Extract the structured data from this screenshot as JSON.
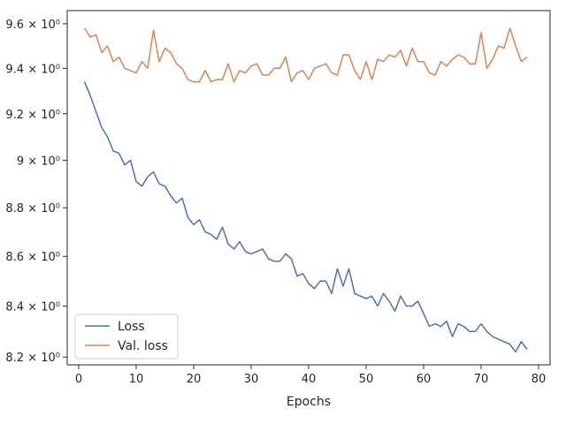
{
  "chart_data": {
    "type": "line",
    "title": "",
    "xlabel": "Epochs",
    "ylabel": "",
    "yscale": "log",
    "xlim": [
      -2,
      82
    ],
    "ylim": [
      8.17,
      9.66
    ],
    "grid": false,
    "legend": "lower-left",
    "x_ticks": [
      0,
      10,
      20,
      30,
      40,
      50,
      60,
      70,
      80
    ],
    "y_ticks": [
      {
        "value": 8.2,
        "label": "8.2 × 10⁰"
      },
      {
        "value": 8.4,
        "label": "8.4 × 10⁰"
      },
      {
        "value": 8.6,
        "label": "8.6 × 10⁰"
      },
      {
        "value": 8.8,
        "label": "8.8 × 10⁰"
      },
      {
        "value": 9.0,
        "label": "9 × 10⁰"
      },
      {
        "value": 9.2,
        "label": "9.2 × 10⁰"
      },
      {
        "value": 9.4,
        "label": "9.4 × 10⁰"
      },
      {
        "value": 9.6,
        "label": "9.6 × 10⁰"
      }
    ],
    "x": [
      1,
      2,
      3,
      4,
      5,
      6,
      7,
      8,
      9,
      10,
      11,
      12,
      13,
      14,
      15,
      16,
      17,
      18,
      19,
      20,
      21,
      22,
      23,
      24,
      25,
      26,
      27,
      28,
      29,
      30,
      31,
      32,
      33,
      34,
      35,
      36,
      37,
      38,
      39,
      40,
      41,
      42,
      43,
      44,
      45,
      46,
      47,
      48,
      49,
      50,
      51,
      52,
      53,
      54,
      55,
      56,
      57,
      58,
      59,
      60,
      61,
      62,
      63,
      64,
      65,
      66,
      67,
      68,
      69,
      70,
      71,
      72,
      73,
      74,
      75,
      76,
      77,
      78
    ],
    "series": [
      {
        "name": "Loss",
        "color": "#4c72b0",
        "values": [
          9.34,
          9.28,
          9.21,
          9.14,
          9.1,
          9.04,
          9.03,
          8.98,
          9.0,
          8.91,
          8.89,
          8.93,
          8.95,
          8.9,
          8.89,
          8.85,
          8.82,
          8.84,
          8.76,
          8.73,
          8.75,
          8.7,
          8.69,
          8.67,
          8.72,
          8.65,
          8.63,
          8.66,
          8.62,
          8.61,
          8.62,
          8.63,
          8.59,
          8.58,
          8.58,
          8.61,
          8.59,
          8.52,
          8.53,
          8.49,
          8.47,
          8.5,
          8.5,
          8.45,
          8.55,
          8.48,
          8.55,
          8.45,
          8.44,
          8.43,
          8.44,
          8.4,
          8.45,
          8.42,
          8.38,
          8.44,
          8.4,
          8.4,
          8.42,
          8.37,
          8.32,
          8.33,
          8.32,
          8.34,
          8.28,
          8.33,
          8.32,
          8.3,
          8.3,
          8.33,
          8.3,
          8.28,
          8.27,
          8.26,
          8.25,
          8.22,
          8.26,
          8.23
        ]
      },
      {
        "name": "Val. loss",
        "color": "#dd8452",
        "values": [
          9.58,
          9.54,
          9.55,
          9.47,
          9.5,
          9.43,
          9.45,
          9.4,
          9.39,
          9.38,
          9.43,
          9.4,
          9.57,
          9.43,
          9.49,
          9.47,
          9.42,
          9.4,
          9.35,
          9.34,
          9.34,
          9.39,
          9.34,
          9.35,
          9.35,
          9.42,
          9.34,
          9.39,
          9.38,
          9.41,
          9.42,
          9.37,
          9.37,
          9.4,
          9.4,
          9.45,
          9.34,
          9.38,
          9.39,
          9.35,
          9.4,
          9.41,
          9.42,
          9.38,
          9.37,
          9.46,
          9.46,
          9.39,
          9.35,
          9.43,
          9.35,
          9.44,
          9.43,
          9.46,
          9.45,
          9.48,
          9.41,
          9.49,
          9.43,
          9.43,
          9.38,
          9.37,
          9.43,
          9.41,
          9.44,
          9.46,
          9.45,
          9.42,
          9.42,
          9.56,
          9.4,
          9.44,
          9.5,
          9.49,
          9.58,
          9.5,
          9.43,
          9.45
        ]
      }
    ]
  }
}
